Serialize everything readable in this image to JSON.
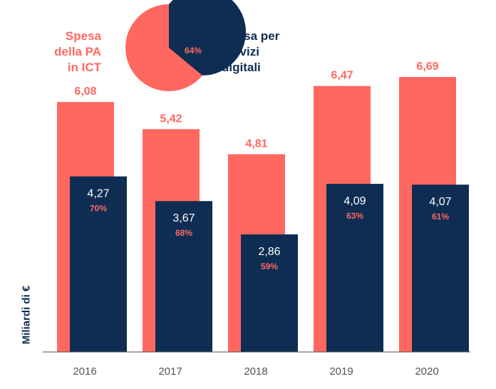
{
  "chart_data": {
    "type": "bar",
    "categories": [
      "2016",
      "2017",
      "2018",
      "2019",
      "2020"
    ],
    "series": [
      {
        "name": "Spesa della PA in ICT",
        "color": "#FF6860",
        "values": [
          6.08,
          5.42,
          4.81,
          6.47,
          6.69
        ],
        "labels": [
          "6,08",
          "5,42",
          "4,81",
          "6,47",
          "6,69"
        ]
      },
      {
        "name": "Spesa per servizi digitali",
        "color": "#0F2D52",
        "values": [
          4.27,
          3.67,
          2.86,
          4.09,
          4.07
        ],
        "labels": [
          "4,27",
          "3,67",
          "2,86",
          "4,09",
          "4,07"
        ],
        "shares": [
          "70%",
          "68%",
          "59%",
          "63%",
          "61%"
        ]
      }
    ],
    "ylabel": "Miliardi di €",
    "ylim": [
      0,
      6.69
    ],
    "legend": {
      "left_lines": [
        "Spesa",
        "della PA",
        "in ICT"
      ],
      "right_lines": [
        "Spesa per",
        "servizi",
        "digitali"
      ]
    },
    "pie": {
      "value": 64,
      "label": "64%"
    }
  }
}
